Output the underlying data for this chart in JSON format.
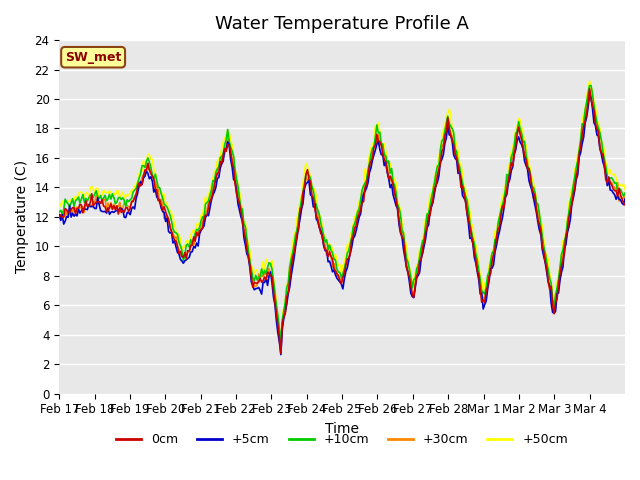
{
  "title": "Water Temperature Profile A",
  "xlabel": "Time",
  "ylabel": "Temperature (C)",
  "annotation": "SW_met",
  "ylim": [
    0,
    24
  ],
  "xlim_days": 16,
  "tick_labels": [
    "Feb 17",
    "Feb 18",
    "Feb 19",
    "Feb 20",
    "Feb 21",
    "Feb 22",
    "Feb 23",
    "Feb 24",
    "Feb 25",
    "Feb 26",
    "Feb 27",
    "Feb 28",
    "Mar 1",
    "Mar 2",
    "Mar 3",
    "Mar 4"
  ],
  "line_colors": [
    "#cc0000",
    "#0000cc",
    "#00cc00",
    "#ff8800",
    "#ffff00"
  ],
  "line_labels": [
    "0cm",
    "+5cm",
    "+10cm",
    "+30cm",
    "+50cm"
  ],
  "background_color": "#e8e8e8",
  "plot_bg": "#e8e8e8",
  "title_fontsize": 13,
  "label_fontsize": 10,
  "tick_fontsize": 8.5
}
